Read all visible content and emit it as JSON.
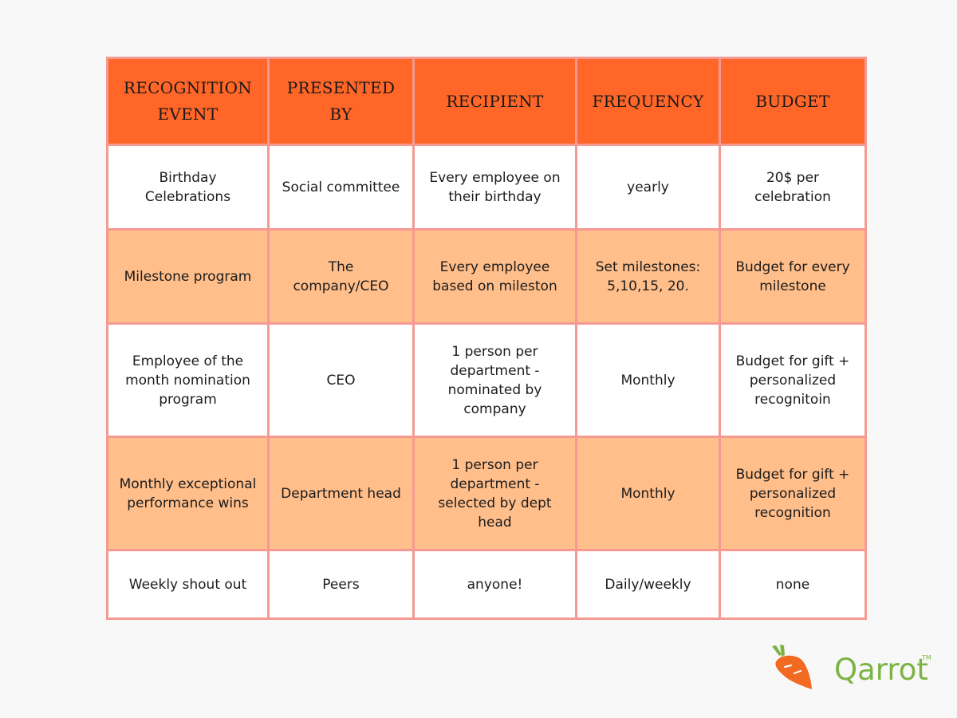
{
  "table": {
    "headers": [
      "RECOGNITION EVENT",
      "PRESENTED BY",
      "RECIPIENT",
      "FREQUENCY",
      "BUDGET"
    ],
    "rows": [
      [
        "Birthday Celebrations",
        "Social committee",
        "Every employee on their birthday",
        "yearly",
        "20$ per celebration"
      ],
      [
        "Milestone program",
        "The company/CEO",
        "Every employee based on mileston",
        "Set milestones: 5,10,15, 20.",
        "Budget for every milestone"
      ],
      [
        "Employee of the month nomination program",
        "CEO",
        "1 person per department - nominated by company",
        "Monthly",
        "Budget for gift + personalized recognitoin"
      ],
      [
        "Monthly exceptional performance wins",
        "Department head",
        "1 person per department - selected by dept head",
        "Monthly",
        "Budget for gift + personalized recognition"
      ],
      [
        "Weekly shout out",
        "Peers",
        "anyone!",
        "Daily/weekly",
        "none"
      ]
    ]
  },
  "logo": {
    "brand": "Qarrot",
    "tm": "TM",
    "icon": "carrot-icon"
  },
  "colors": {
    "header_bg": "#ff6628",
    "row_alt_bg": "#ffbe8a",
    "border": "#f59a92",
    "brand_green": "#7cb342",
    "carrot_orange": "#f26a21"
  }
}
